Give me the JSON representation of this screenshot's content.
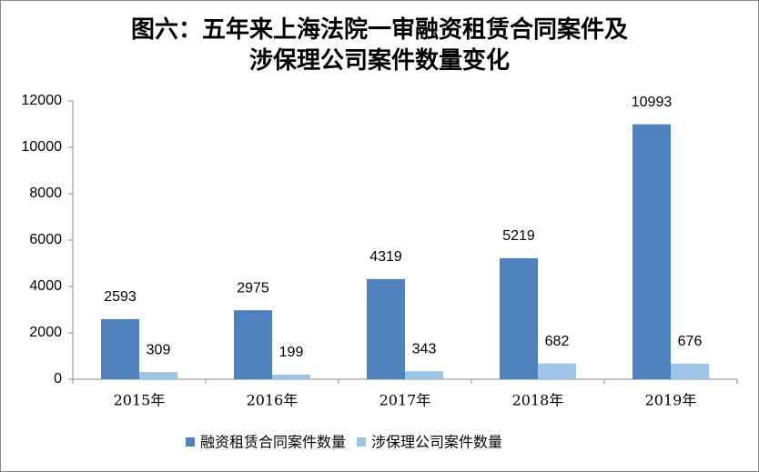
{
  "chart_data": {
    "type": "bar",
    "title": [
      "图六：五年来上海法院一审融资租赁合同案件及",
      "涉保理公司案件数量变化"
    ],
    "categories": [
      "2015年",
      "2016年",
      "2017年",
      "2018年",
      "2019年"
    ],
    "series": [
      {
        "name": "融资租赁合同案件数量",
        "color": "#4f81bd",
        "values": [
          2593,
          2975,
          4319,
          5219,
          10993
        ]
      },
      {
        "name": "涉保理公司案件数量",
        "color": "#9dc3e6",
        "values": [
          309,
          199,
          343,
          682,
          676
        ]
      }
    ],
    "ylim": [
      0,
      12000
    ],
    "yticks": [
      0,
      2000,
      4000,
      6000,
      8000,
      10000,
      12000
    ],
    "grid": false,
    "legend": "bottom"
  }
}
